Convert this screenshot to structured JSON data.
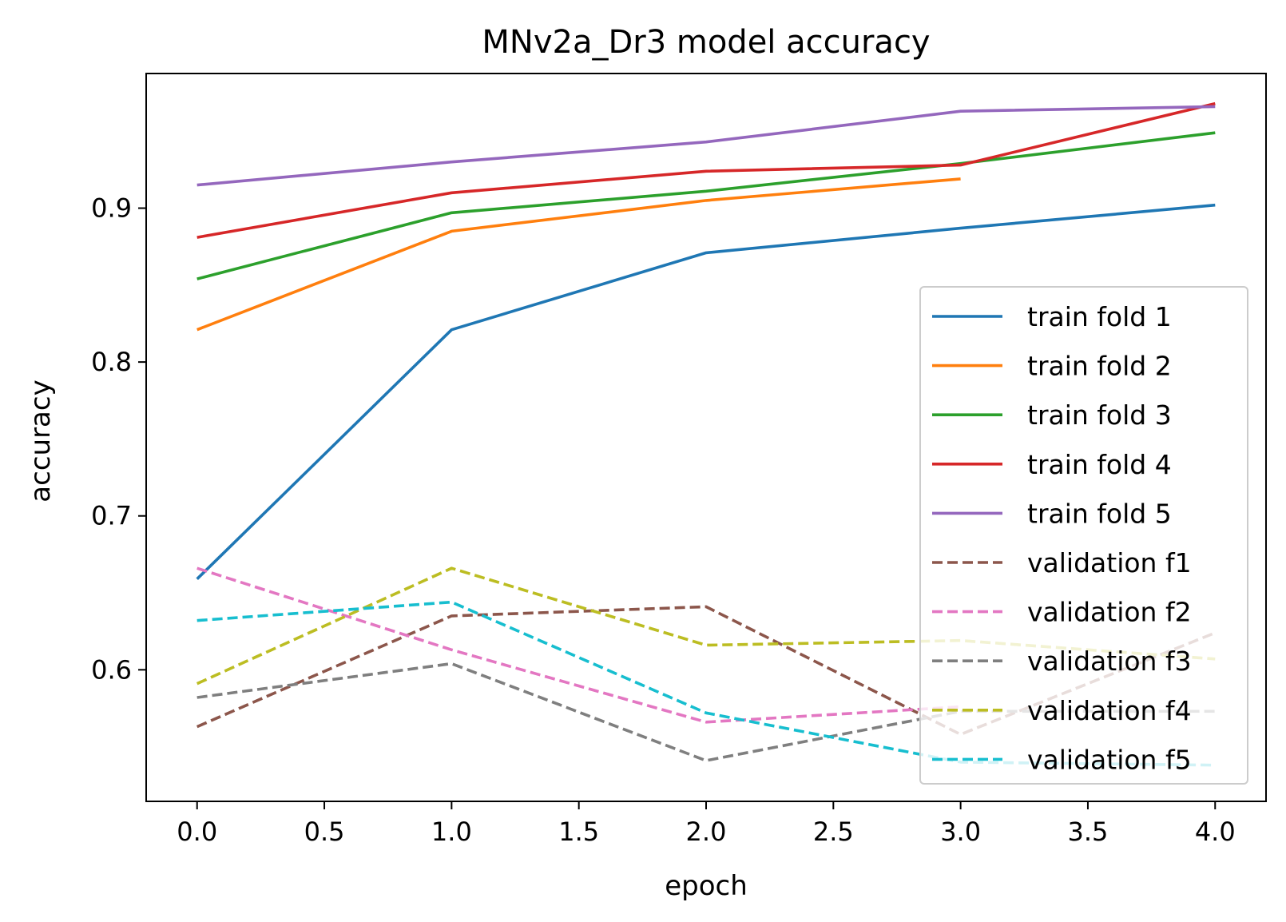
{
  "chart_data": {
    "type": "line",
    "title": "MNv2a_Dr3 model accuracy",
    "xlabel": "epoch",
    "ylabel": "accuracy",
    "x": [
      0,
      1,
      2,
      3,
      4
    ],
    "xlim": [
      -0.2,
      4.2
    ],
    "ylim": [
      0.5145,
      0.9875
    ],
    "xticks": [
      0.0,
      0.5,
      1.0,
      1.5,
      2.0,
      2.5,
      3.0,
      3.5,
      4.0
    ],
    "xtick_labels": [
      "0.0",
      "0.5",
      "1.0",
      "1.5",
      "2.0",
      "2.5",
      "3.0",
      "3.5",
      "4.0"
    ],
    "yticks": [
      0.6,
      0.7,
      0.8,
      0.9
    ],
    "ytick_labels": [
      "0.6",
      "0.7",
      "0.8",
      "0.9"
    ],
    "grid": false,
    "legend_position": "lower-right",
    "series": [
      {
        "name": "train fold 1",
        "style": "solid",
        "color": "#1f77b4",
        "values": [
          0.659,
          0.821,
          0.871,
          0.887,
          0.902
        ]
      },
      {
        "name": "train fold 2",
        "style": "solid",
        "color": "#ff7f0e",
        "values": [
          0.821,
          0.885,
          0.905,
          0.919,
          null
        ]
      },
      {
        "name": "train fold 3",
        "style": "solid",
        "color": "#2ca02c",
        "values": [
          0.854,
          0.897,
          0.911,
          0.929,
          0.949
        ]
      },
      {
        "name": "train fold 4",
        "style": "solid",
        "color": "#d62728",
        "values": [
          0.881,
          0.91,
          0.924,
          0.928,
          0.968
        ]
      },
      {
        "name": "train fold 5",
        "style": "solid",
        "color": "#9467bd",
        "values": [
          0.915,
          0.93,
          0.943,
          0.963,
          0.966
        ]
      },
      {
        "name": "validation f1",
        "style": "dashed",
        "color": "#8c564b",
        "values": [
          0.563,
          0.635,
          0.641,
          0.558,
          0.624
        ]
      },
      {
        "name": "validation f2",
        "style": "dashed",
        "color": "#e377c2",
        "values": [
          0.666,
          0.613,
          0.566,
          0.576,
          null
        ]
      },
      {
        "name": "validation f3",
        "style": "dashed",
        "color": "#7f7f7f",
        "values": [
          0.582,
          0.604,
          0.541,
          0.573,
          0.573
        ]
      },
      {
        "name": "validation f4",
        "style": "dashed",
        "color": "#bcbd22",
        "values": [
          0.591,
          0.666,
          0.616,
          0.619,
          0.607
        ]
      },
      {
        "name": "validation f5",
        "style": "dashed",
        "color": "#17becf",
        "values": [
          0.632,
          0.644,
          0.572,
          0.54,
          0.538
        ]
      }
    ]
  }
}
